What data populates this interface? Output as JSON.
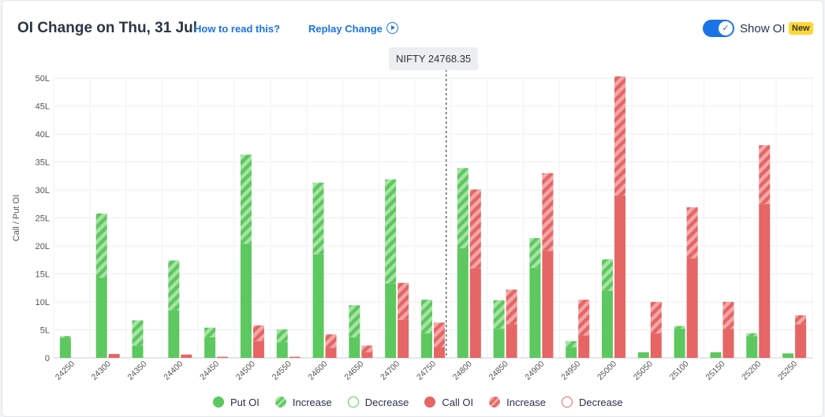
{
  "header": {
    "title": "OI Change on Thu, 31 Jul",
    "how_to_read": "How to read this?",
    "replay": "Replay Change",
    "show_oi": "Show OI",
    "badge": "New",
    "toggle_on": true
  },
  "spot_label": "NIFTY 24768.35",
  "colors": {
    "put": "#5cc85f",
    "put_light": "#a7e3a4",
    "call": "#e66565",
    "call_light": "#f3a7a7",
    "accent": "#1a73e8"
  },
  "legend": [
    {
      "label": "Put OI",
      "style": "put-solid"
    },
    {
      "label": "Increase",
      "style": "put-hatch"
    },
    {
      "label": "Decrease",
      "style": "put-outline"
    },
    {
      "label": "Call OI",
      "style": "call-solid"
    },
    {
      "label": "Increase",
      "style": "call-hatch"
    },
    {
      "label": "Decrease",
      "style": "call-outline"
    }
  ],
  "chart_data": {
    "type": "bar",
    "stacked_change": true,
    "ylabel": "Call / Put OI",
    "ylim": [
      0,
      50
    ],
    "y_ticks": [
      "0",
      "5L",
      "10L",
      "15L",
      "20L",
      "25L",
      "30L",
      "35L",
      "40L",
      "45L",
      "50L"
    ],
    "spot": 24768.35,
    "categories": [
      "24250",
      "24300",
      "24350",
      "24400",
      "24450",
      "24500",
      "24550",
      "24600",
      "24650",
      "24700",
      "24750",
      "24800",
      "24850",
      "24900",
      "24950",
      "25000",
      "25050",
      "25100",
      "25150",
      "25200",
      "25250"
    ],
    "series": [
      {
        "name": "Put OI",
        "base": [
          3.6,
          14.3,
          2.2,
          8.5,
          3.7,
          20.4,
          2.8,
          18.5,
          3.7,
          13.3,
          4.4,
          19.6,
          5.2,
          16.1,
          1.9,
          12.0,
          1.0,
          5.2,
          1.0,
          3.9,
          0.8
        ],
        "increase": [
          0.3,
          11.5,
          4.5,
          8.9,
          1.7,
          15.9,
          2.3,
          12.8,
          5.7,
          18.6,
          6.0,
          14.3,
          5.1,
          5.3,
          1.1,
          5.6,
          0.0,
          0.5,
          0.0,
          0.5,
          0.0
        ]
      },
      {
        "name": "Call OI",
        "base": [
          0.0,
          0.7,
          0.0,
          0.6,
          0.2,
          3.0,
          0.2,
          1.8,
          1.0,
          6.8,
          1.9,
          16.0,
          6.0,
          19.1,
          4.0,
          29.0,
          4.4,
          17.8,
          5.2,
          27.5,
          6.0
        ],
        "increase": [
          0.0,
          0.0,
          0.0,
          0.0,
          0.0,
          2.8,
          0.0,
          2.4,
          1.2,
          6.6,
          4.4,
          14.1,
          6.2,
          13.9,
          6.4,
          21.3,
          5.6,
          9.1,
          4.8,
          10.5,
          1.6
        ]
      }
    ]
  }
}
